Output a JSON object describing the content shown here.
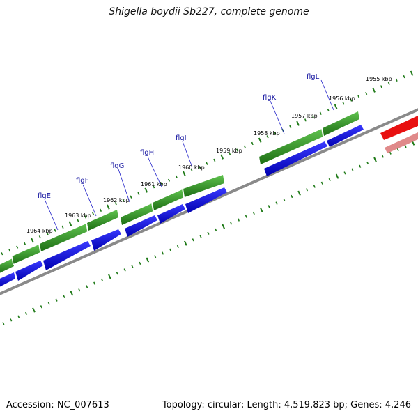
{
  "header": {
    "title": "Shigella boydii Sb227, complete genome"
  },
  "footer": {
    "accession": "Accession: NC_007613",
    "summary": "Topology: circular; Length: 4,519,823 bp; Genes: 4,246"
  },
  "scale": {
    "labels": [
      "1964 kbp",
      "1963 kbp",
      "1962 kbp",
      "1961 kbp",
      "1960 kbp",
      "1959 kbp",
      "1958 kbp",
      "1957 kbp",
      "1956 kbp",
      "1955 kbp"
    ]
  },
  "genes": [
    "flgE",
    "flgF",
    "flgG",
    "flgH",
    "flgI",
    "flgK",
    "flgL"
  ],
  "colors": {
    "gene_green": "#2a8a1f",
    "cds_blue": "#1010e0",
    "backbone": "#808080",
    "other_feature_red": "#e81010",
    "other_feature_pink": "#e08a8a",
    "tick_green": "#1f7a18"
  }
}
